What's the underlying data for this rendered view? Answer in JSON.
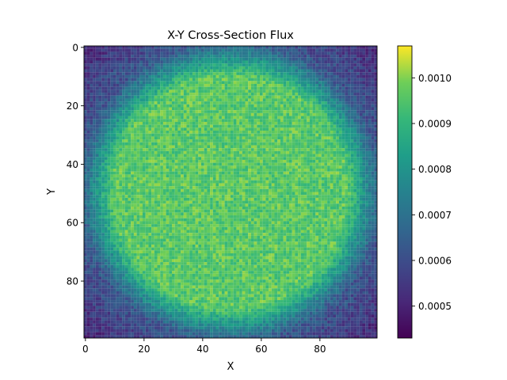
{
  "chart_data": {
    "type": "heatmap",
    "title": "X-Y Cross-Section Flux",
    "xlabel": "X",
    "ylabel": "Y",
    "grid": false,
    "x_range": [
      0,
      99
    ],
    "y_range": [
      0,
      99
    ],
    "y_direction": "top-to-bottom",
    "x_ticks": [
      "0",
      "20",
      "40",
      "60",
      "80"
    ],
    "y_ticks": [
      "0",
      "20",
      "40",
      "60",
      "80"
    ],
    "colorbar": {
      "colormap": "viridis",
      "min": 0.00043,
      "max": 0.00107,
      "ticks": [
        "0.0005",
        "0.0006",
        "0.0007",
        "0.0008",
        "0.0009",
        "0.0010"
      ]
    },
    "description_of_values": {
      "center_value": 0.00096,
      "edge_value": 0.00062,
      "corner_value": 0.00046,
      "plateau_radius_cells": 40
    }
  }
}
